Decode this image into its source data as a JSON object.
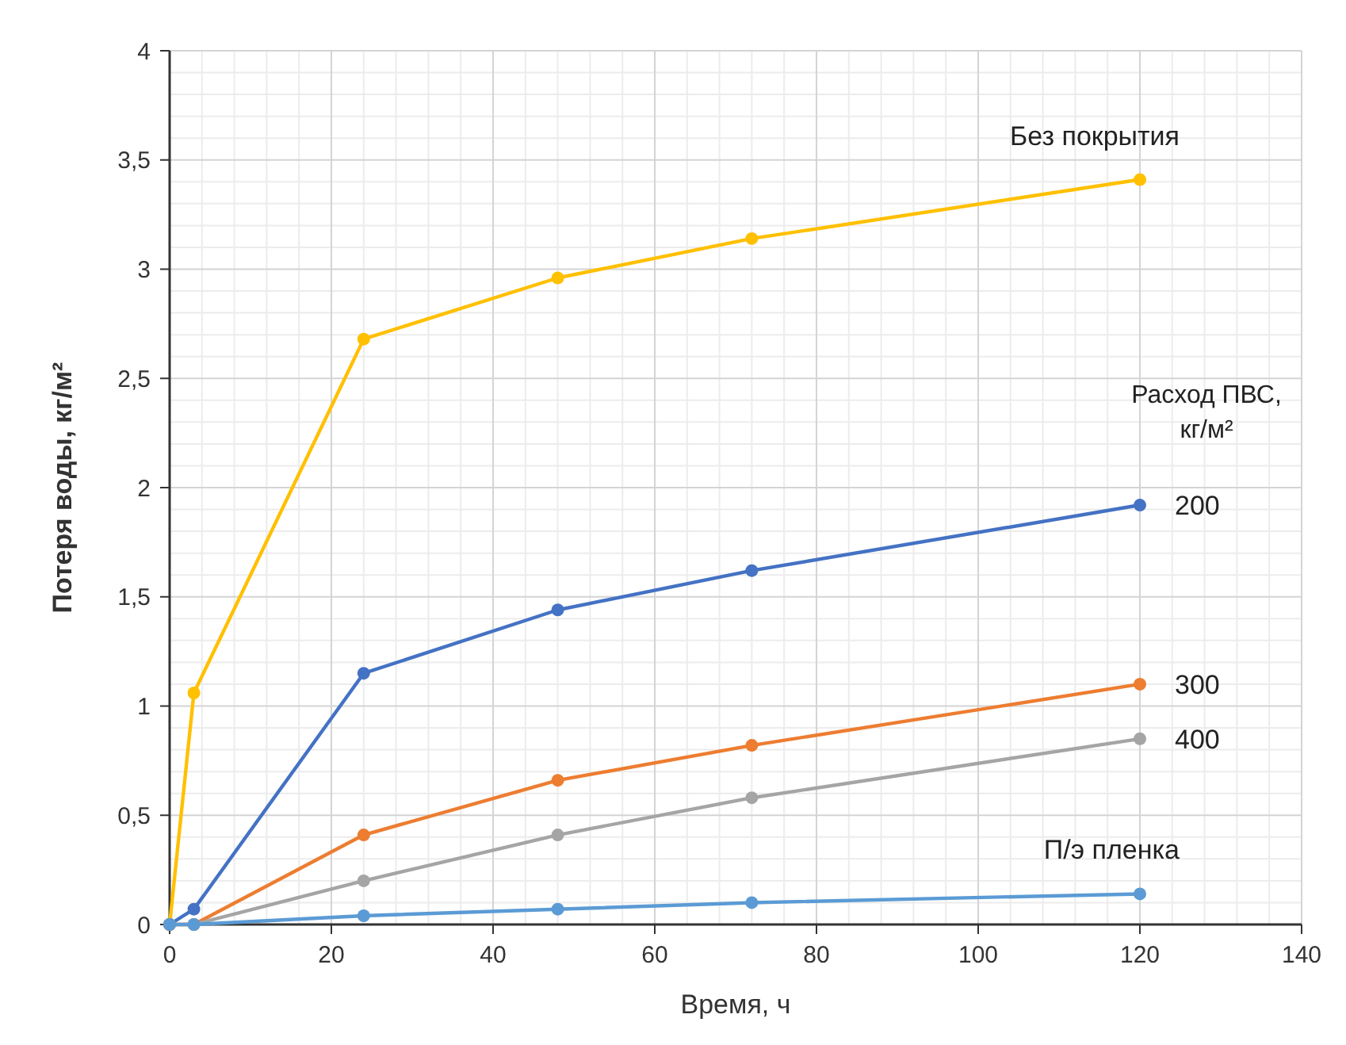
{
  "chart_data": {
    "type": "line",
    "xlabel": "Время, ч",
    "ylabel": "Потеря воды, кг/м²",
    "x": [
      0,
      3,
      24,
      48,
      72,
      120
    ],
    "series": [
      {
        "name": "Без покрытия",
        "color": "#ffc000",
        "values": [
          0,
          1.06,
          2.68,
          2.96,
          3.14,
          3.41
        ]
      },
      {
        "name": "200",
        "color": "#4472c4",
        "values": [
          0,
          0.07,
          1.15,
          1.44,
          1.62,
          1.92
        ]
      },
      {
        "name": "300",
        "color": "#ed7d31",
        "values": [
          0,
          0,
          0.41,
          0.66,
          0.82,
          1.1
        ]
      },
      {
        "name": "400",
        "color": "#a5a5a5",
        "values": [
          0,
          0,
          0.2,
          0.41,
          0.58,
          0.85
        ]
      },
      {
        "name": "П/э пленка",
        "color": "#5b9bd5",
        "values": [
          0,
          0,
          0.04,
          0.07,
          0.1,
          0.14
        ]
      }
    ],
    "annotations": [
      "Расход ПВС, кг/м²"
    ],
    "xlim": [
      0,
      140
    ],
    "xticks": [
      0,
      20,
      40,
      60,
      80,
      100,
      120,
      140
    ],
    "ylim": [
      0,
      4
    ],
    "yticks": [
      0,
      {
        "value": 0.5,
        "label": "0,5"
      },
      1,
      {
        "value": 1.5,
        "label": "1,5"
      },
      2,
      {
        "value": 2.5,
        "label": "2,5"
      },
      3,
      {
        "value": 3.5,
        "label": "3,5"
      },
      4
    ],
    "grid": true,
    "marker": "circle",
    "line_style": "solid"
  }
}
